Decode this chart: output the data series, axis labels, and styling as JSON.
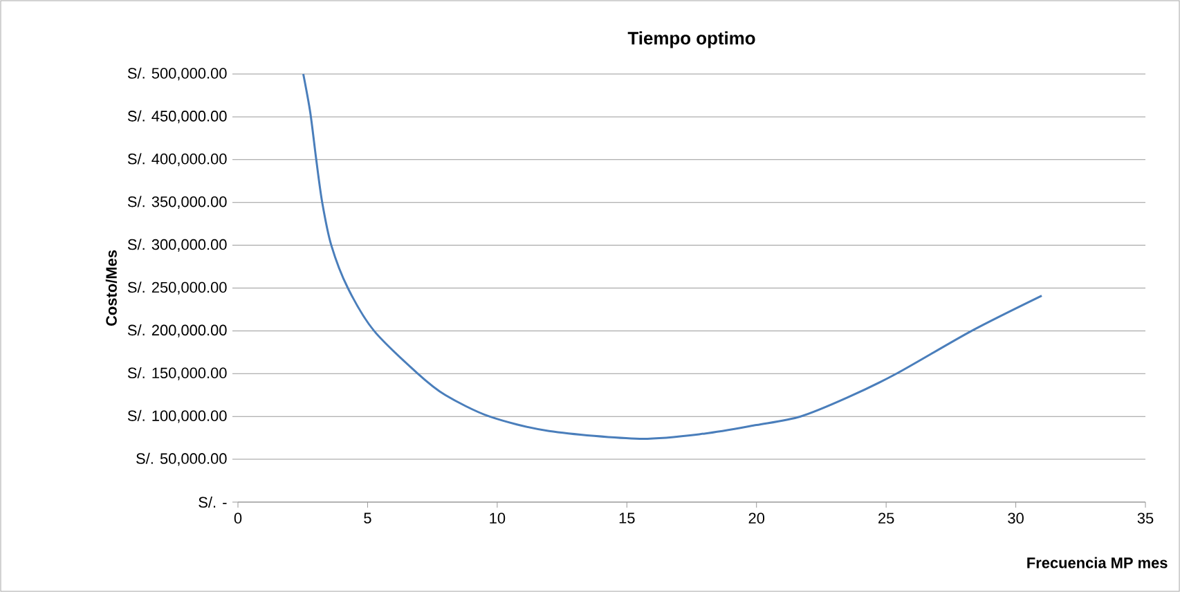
{
  "chart_data": {
    "type": "line",
    "title": "Tiempo optimo",
    "xlabel": "Frecuencia MP mes",
    "ylabel": "Costo/Mes",
    "x": [
      2.52,
      2.79,
      3.02,
      3.25,
      3.6,
      4.24,
      5.25,
      6.94,
      8,
      9.7,
      12,
      15.5,
      18,
      20,
      21.7,
      23.5,
      25.4,
      28.3,
      31
    ],
    "series": [
      {
        "color": "#4a7ebb",
        "values": [
          500000,
          455000,
          400000,
          350000,
          300000,
          250000,
          200000,
          150000,
          125000,
          100000,
          83000,
          74000,
          80000,
          90000,
          100000,
          122000,
          150000,
          200000,
          241000
        ]
      }
    ],
    "xlim": [
      0,
      35
    ],
    "xticks": [
      0,
      5,
      10,
      15,
      20,
      25,
      30,
      35
    ],
    "ylim": [
      0,
      500000
    ],
    "yticks": [
      {
        "value": 0,
        "label": "S/. -"
      },
      {
        "value": 50000,
        "label": "S/. 50,000.00"
      },
      {
        "value": 100000,
        "label": "S/. 100,000.00"
      },
      {
        "value": 150000,
        "label": "S/. 150,000.00"
      },
      {
        "value": 200000,
        "label": "S/. 200,000.00"
      },
      {
        "value": 250000,
        "label": "S/. 250,000.00"
      },
      {
        "value": 300000,
        "label": "S/. 300,000.00"
      },
      {
        "value": 350000,
        "label": "S/. 350,000.00"
      },
      {
        "value": 400000,
        "label": "S/. 400,000.00"
      },
      {
        "value": 450000,
        "label": "S/. 450,000.00"
      },
      {
        "value": 500000,
        "label": "S/. 500,000.00"
      }
    ],
    "grid": "y",
    "marker": "none",
    "line_style": "solid"
  }
}
